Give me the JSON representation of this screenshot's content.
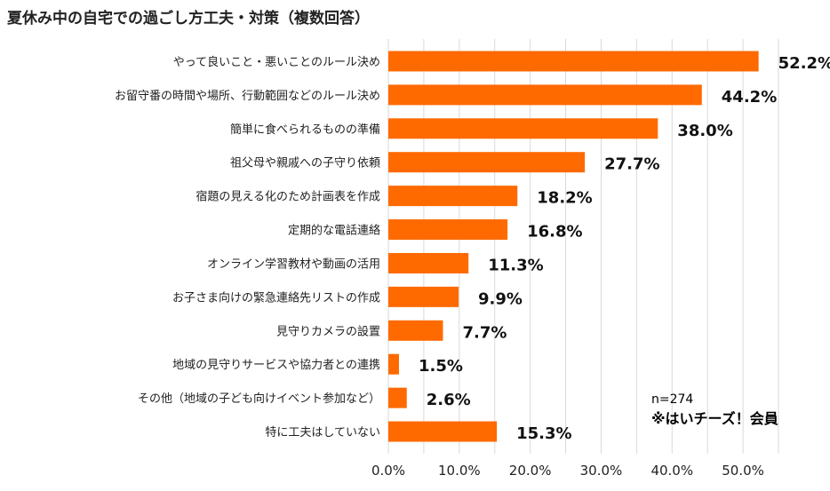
{
  "chart_data": {
    "type": "bar",
    "orientation": "horizontal",
    "title": "夏休み中の自宅での過ごし方工夫・対策（複数回答）",
    "categories": [
      "やって良いこと・悪いことのルール決め",
      "お留守番の時間や場所、行動範囲などのルール決め",
      "簡単に食べられるものの準備",
      "祖父母や親戚への子守り依頼",
      "宿題の見える化のため計画表を作成",
      "定期的な電話連絡",
      "オンライン学習教材や動画の活用",
      "お子さま向けの緊急連絡先リストの作成",
      "見守りカメラの設置",
      "地域の見守りサービスや協力者との連携",
      "その他（地域の子ども向けイベント参加など）",
      "特に工夫はしていない"
    ],
    "values": [
      52.2,
      44.2,
      38.0,
      27.7,
      18.2,
      16.8,
      11.3,
      9.9,
      7.7,
      1.5,
      2.6,
      15.3
    ],
    "value_labels": [
      "52.2%",
      "44.2%",
      "38.0%",
      "27.7%",
      "18.2%",
      "16.8%",
      "11.3%",
      "9.9%",
      "7.7%",
      "1.5%",
      "2.6%",
      "15.3%"
    ],
    "xlim": [
      0,
      55
    ],
    "xticks": [
      0,
      10,
      20,
      30,
      40,
      50
    ],
    "xtick_labels": [
      "0.0%",
      "10.0%",
      "20.0%",
      "30.0%",
      "40.0%",
      "50.0%"
    ],
    "grid": true,
    "bar_color": "#ff6a00",
    "grid_color": "#d9d9d9"
  },
  "note": {
    "sample": "n=274",
    "members": "※はいチーズ！会員"
  }
}
